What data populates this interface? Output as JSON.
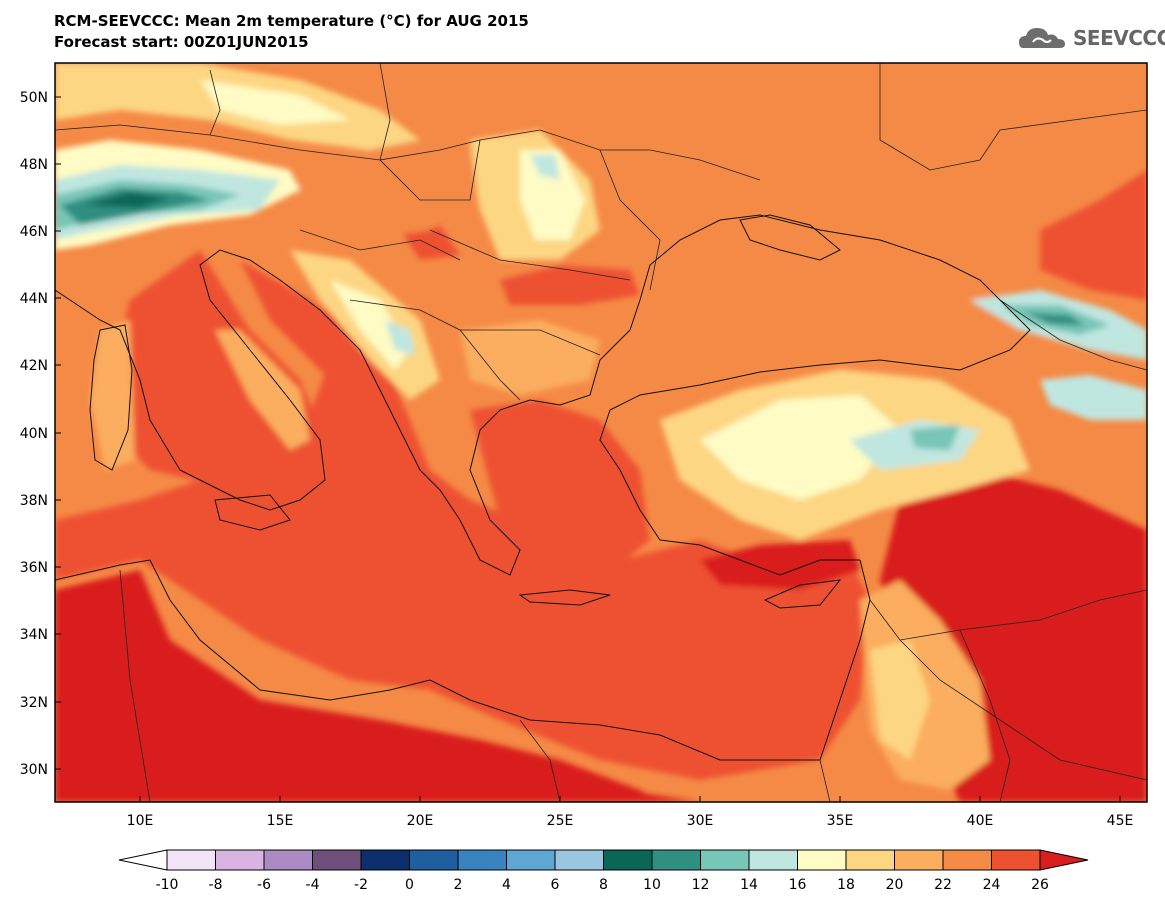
{
  "header": {
    "title": "RCM-SEEVCCC: Mean 2m temperature (°C) for AUG 2015",
    "subtitle": "Forecast start: 00Z01JUN2015",
    "logo_text": "SEEVCCC"
  },
  "map": {
    "lat_labels": [
      "50N",
      "48N",
      "46N",
      "44N",
      "42N",
      "40N",
      "38N",
      "36N",
      "34N",
      "32N",
      "30N"
    ],
    "lon_labels": [
      "10E",
      "15E",
      "20E",
      "25E",
      "30E",
      "35E",
      "40E",
      "45E"
    ]
  },
  "colorbar": {
    "labels": [
      "-10",
      "-8",
      "-6",
      "-4",
      "-2",
      "0",
      "2",
      "4",
      "6",
      "8",
      "10",
      "12",
      "14",
      "16",
      "18",
      "20",
      "22",
      "24",
      "26"
    ],
    "colors": [
      "#f2e6f6",
      "#d9b3e2",
      "#aa8bc4",
      "#6c4f7b",
      "#0d2f6b",
      "#1f5fa0",
      "#3983c0",
      "#5fa6d3",
      "#9ac6e2",
      "#0a6656",
      "#2f8f80",
      "#78c6b8",
      "#c0e6e0",
      "#fefbc4",
      "#fdd683",
      "#fbae5e",
      "#f58a46",
      "#ee5130"
    ],
    "under_color": "#ffffff",
    "over_color": "#d91f1d"
  },
  "palette": {
    "hot": "#ee5130",
    "very_hot": "#d91f1d",
    "warm": "#f58a46",
    "mild": "#fbae5e",
    "cool": "#fdd683",
    "pale": "#fefbc4",
    "teal_light": "#c0e6e0",
    "teal": "#78c6b8",
    "teal_dark": "#2f8f80",
    "deep": "#0a6656"
  }
}
